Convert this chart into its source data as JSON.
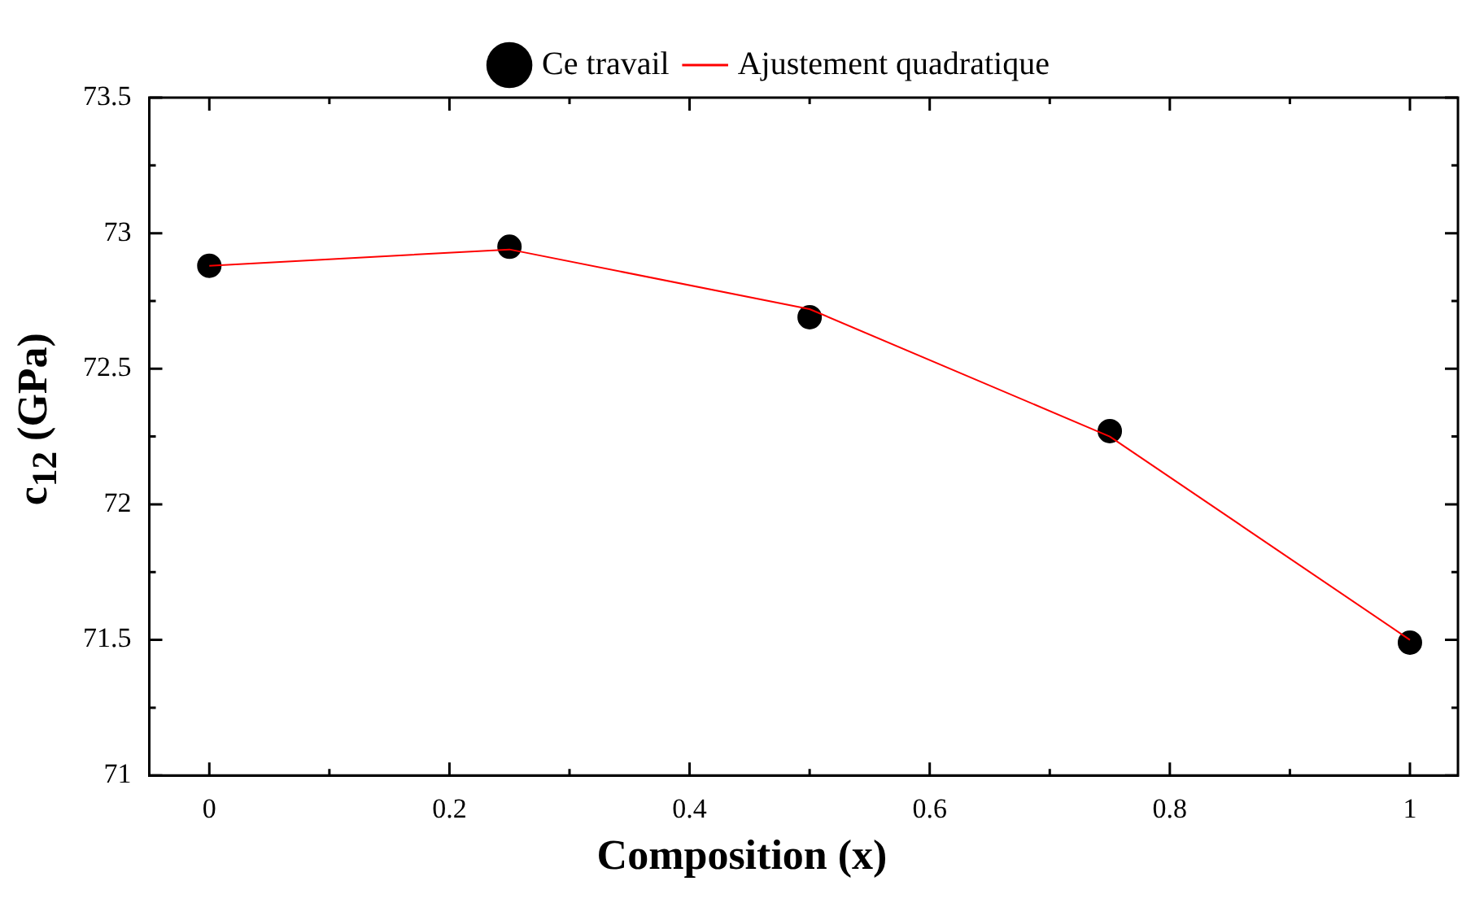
{
  "chart_data": {
    "type": "scatter",
    "xlabel": "Composition (x)",
    "ylabel": "c$_{12}$ (GPa)",
    "x": [
      0,
      0.25,
      0.5,
      0.75,
      1
    ],
    "series": [
      {
        "name": "Ce travail",
        "type": "scatter",
        "color": "#000000",
        "marker": "circle",
        "values": [
          72.88,
          72.95,
          72.69,
          72.27,
          71.49
        ]
      },
      {
        "name": "Ajustement quadratique",
        "type": "line",
        "color": "#ff0000",
        "marker": "none",
        "line_style": "solid",
        "x": [
          0,
          0.25,
          0.5,
          0.75,
          1
        ],
        "values": [
          72.88,
          72.94,
          72.72,
          72.25,
          71.5
        ]
      }
    ],
    "xlim": [
      -0.05,
      1.04
    ],
    "ylim": [
      71,
      73.5
    ],
    "xticks": [
      0,
      {
        "value": 0.1,
        "label": null
      },
      0.2,
      {
        "value": 0.3,
        "label": null
      },
      0.4,
      {
        "value": 0.5,
        "label": null
      },
      0.6,
      {
        "value": 0.7,
        "label": null
      },
      0.8,
      {
        "value": 0.9,
        "label": null
      },
      1
    ],
    "yticks": [
      71,
      {
        "value": 71.25,
        "label": null
      },
      71.5,
      {
        "value": 71.75,
        "label": null
      },
      72,
      {
        "value": 72.25,
        "label": null
      },
      72.5,
      {
        "value": 72.75,
        "label": null
      },
      73,
      {
        "value": 73.25,
        "label": null
      },
      73.5
    ],
    "grid": false,
    "legend": "top"
  }
}
